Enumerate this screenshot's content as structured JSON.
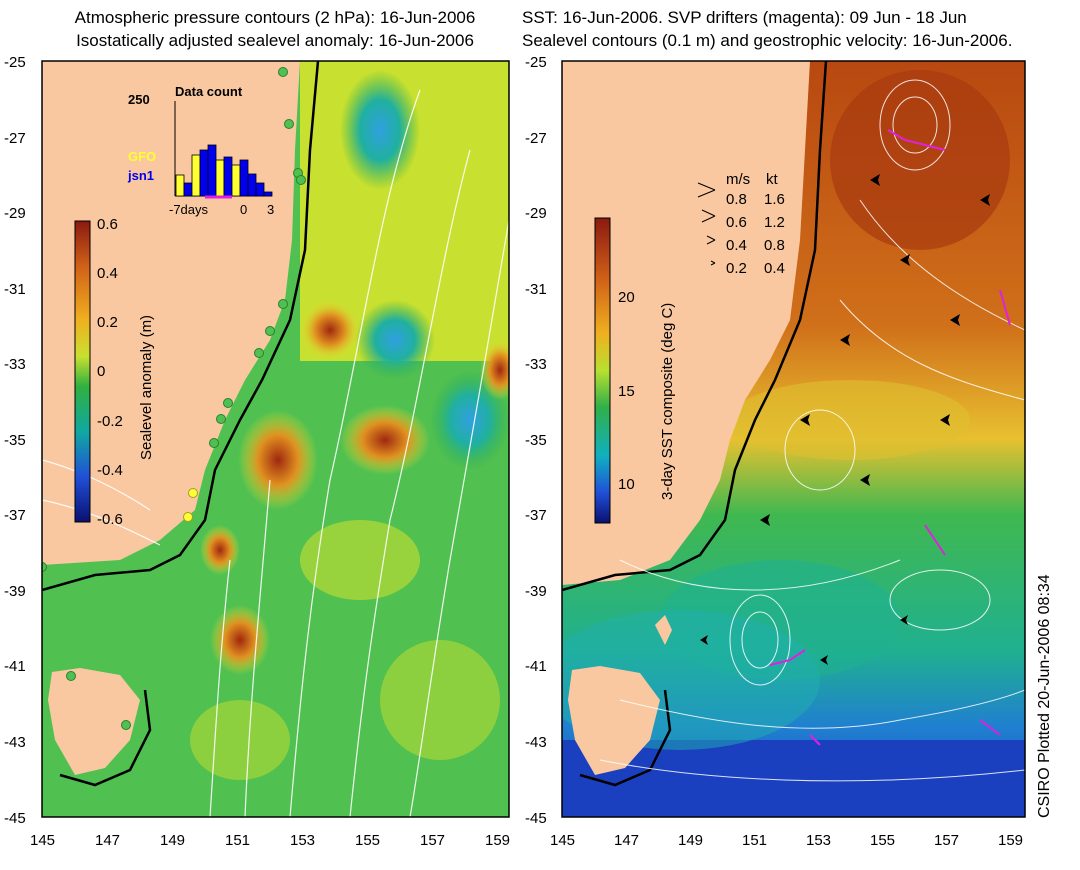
{
  "left_panel": {
    "title_line1": "Atmospheric pressure contours (2 hPa): 16-Jun-2006",
    "title_line2": "Isostatically adjusted sealevel anomaly: 16-Jun-2006",
    "colorbar_label": "Sealevel anomaly (m)",
    "colorbar_ticks": [
      "0.6",
      "0.4",
      "0.2",
      "0",
      "-0.2",
      "-0.4",
      "-0.6"
    ],
    "inset": {
      "title": "Data count",
      "ymax_label": "250",
      "legend": [
        {
          "name": "GFO",
          "color": "#ffff33"
        },
        {
          "name": "jsn1",
          "color": "#0000ee"
        }
      ],
      "x_labels": [
        "-7days",
        "0",
        "3"
      ]
    }
  },
  "right_panel": {
    "title_line1": "SST: 16-Jun-2006. SVP drifters (magenta): 09 Jun - 18 Jun",
    "title_line2": "Sealevel contours (0.1 m) and geostrophic velocity: 16-Jun-2006.",
    "colorbar_label": "3-day SST composite (deg C)",
    "colorbar_ticks": [
      "20",
      "15",
      "10"
    ],
    "velocity_key": {
      "headers": [
        "m/s",
        "kt"
      ],
      "rows": [
        [
          "0.8",
          "1.6"
        ],
        [
          "0.6",
          "1.2"
        ],
        [
          "0.4",
          "0.8"
        ],
        [
          "0.2",
          "0.4"
        ]
      ]
    }
  },
  "lat_labels": [
    "-25",
    "-27",
    "-29",
    "-31",
    "-33",
    "-35",
    "-37",
    "-39",
    "-41",
    "-43",
    "-45"
  ],
  "lon_labels": [
    "145",
    "147",
    "149",
    "151",
    "153",
    "155",
    "157",
    "159"
  ],
  "credit": "CSIRO Plotted 20-Jun-2006 08:34",
  "colors": {
    "land": "#f9c8a0",
    "ssh_positive": "#e8e030",
    "ssh_neutral": "#3cc050",
    "sst_warm": "#c85a10",
    "sst_cold": "#1a60d0",
    "drifter": "#e020e0",
    "contour": "#ffffff"
  }
}
